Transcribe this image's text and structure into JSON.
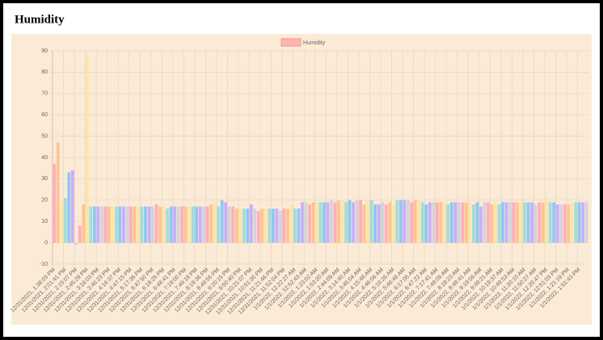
{
  "chart_data": {
    "type": "bar",
    "title": "Humidity",
    "legend": "Humidity",
    "legend_color": "#ffb3b3",
    "colors": [
      "#ffadc0",
      "#ffc48f",
      "#ffe5a3",
      "#a3dcdc",
      "#8fc8ee",
      "#c8aeff",
      "#d3d4d8"
    ],
    "grid": true,
    "ylim": [
      -10,
      90
    ],
    "yticks": [
      -10,
      0,
      10,
      20,
      30,
      40,
      50,
      60,
      70,
      80,
      90
    ],
    "categories": [
      "12/31/2021, 1:38:03 PM",
      null,
      null,
      "12/31/2021, 2:01:41 PM",
      null,
      null,
      "12/31/2021, 2:15:07 PM",
      null,
      null,
      "12/31/2021, 2:45:29 PM",
      null,
      null,
      "12/31/2021, 3:16:03 PM",
      null,
      null,
      "12/31/2021, 3:46:23 PM",
      null,
      null,
      "12/31/2021, 4:16:37 PM",
      null,
      null,
      "12/31/2021, 4:47:15 PM",
      null,
      null,
      "12/31/2021, 5:17:35 PM",
      null,
      null,
      "12/31/2021, 5:47:50 PM",
      null,
      null,
      "12/31/2021, 6:18:25 PM",
      null,
      null,
      "12/31/2021, 6:48:41 PM",
      null,
      null,
      "12/31/2021, 7:19:00 PM",
      null,
      null,
      "12/31/2021, 7:49:18 PM",
      null,
      null,
      "12/31/2021, 8:19:36 PM",
      null,
      null,
      "12/31/2021, 8:49:55 PM",
      null,
      null,
      "12/31/2021, 9:20:15 PM",
      null,
      null,
      "12/31/2021, 9:50:40 PM",
      null,
      null,
      "12/31/2021, 10:21:07 PM",
      null,
      null,
      "12/31/2021, 10:51:30 PM",
      null,
      null,
      "12/31/2021, 11:21:46 PM",
      null,
      null,
      "12/31/2021, 11:52:04 PM",
      null,
      null,
      "1/1/2022, 12:22:27 AM",
      null,
      null,
      "1/1/2022, 12:52:43 AM",
      null,
      null,
      "1/1/2022, 1:23:02 AM",
      null,
      null,
      "1/1/2022, 1:53:20 AM",
      null,
      null,
      "1/1/2022, 2:44:09 AM",
      null,
      null,
      "1/1/2022, 3:14:40 AM",
      null,
      null,
      "1/1/2022, 3:45:04 AM",
      null,
      null,
      "1/1/2022, 4:15:48 AM",
      null,
      null,
      "1/1/2022, 4:46:06 AM",
      null,
      null,
      "1/1/2022, 5:16:26 AM",
      null,
      null,
      "1/1/2022, 5:46:46 AM",
      null,
      null,
      "1/1/2022, 6:17:05 AM",
      null,
      null,
      "1/1/2022, 6:47:22 AM",
      null,
      null,
      "1/1/2022, 7:17:41 AM",
      null,
      null,
      "1/1/2022, 7:48:05 AM",
      null,
      null,
      "1/1/2022, 8:18:23 AM",
      null,
      null,
      "1/1/2022, 8:48:41 AM",
      null,
      null,
      "1/1/2022, 9:19:06 AM",
      null,
      null,
      "1/1/2022, 9:49:21 AM",
      null,
      null,
      "1/1/2022, 10:19:37 AM",
      null,
      null,
      "1/1/2022, 10:49:53 AM",
      null,
      null,
      "1/1/2022, 11:20:10 AM",
      null,
      null,
      "1/1/2022, 11:50:27 AM",
      null,
      null,
      "1/1/2022, 12:20:47 PM",
      null,
      null,
      "1/1/2022, 12:51:03 PM",
      null,
      null,
      "1/1/2022, 1:21:19 PM",
      null,
      null,
      "1/1/2022, 1:51:43 PM",
      null,
      null
    ],
    "values": [
      37,
      47,
      19,
      21,
      33,
      34,
      -1,
      8,
      18,
      88,
      17,
      17,
      17,
      17,
      17,
      17,
      17,
      17,
      17,
      17,
      17,
      17,
      17,
      17,
      17,
      17,
      17,
      17,
      18,
      17,
      17,
      16,
      17,
      17,
      17,
      17,
      17,
      17,
      17,
      17,
      17,
      17,
      17,
      18,
      19,
      17,
      20,
      19,
      17,
      17,
      16,
      16,
      16,
      16,
      18,
      16,
      15,
      16,
      16,
      16,
      16,
      16,
      15,
      16,
      16,
      18,
      16,
      16,
      19,
      19,
      18,
      19,
      19,
      19,
      19,
      19,
      20,
      19,
      20,
      20,
      19,
      20,
      19,
      20,
      20,
      18,
      20,
      20,
      18,
      18,
      19,
      18,
      19,
      18,
      20,
      20,
      20,
      20,
      19,
      20,
      20,
      19,
      18,
      19,
      19,
      19,
      19,
      19,
      18,
      19,
      19,
      19,
      19,
      19,
      19,
      18,
      19,
      17,
      19,
      19,
      18,
      19,
      18,
      19,
      19,
      19,
      19,
      19,
      19,
      19,
      19,
      19,
      18,
      19,
      19,
      21,
      19,
      19,
      18,
      18,
      18,
      18,
      19,
      19,
      19,
      19,
      19
    ]
  }
}
